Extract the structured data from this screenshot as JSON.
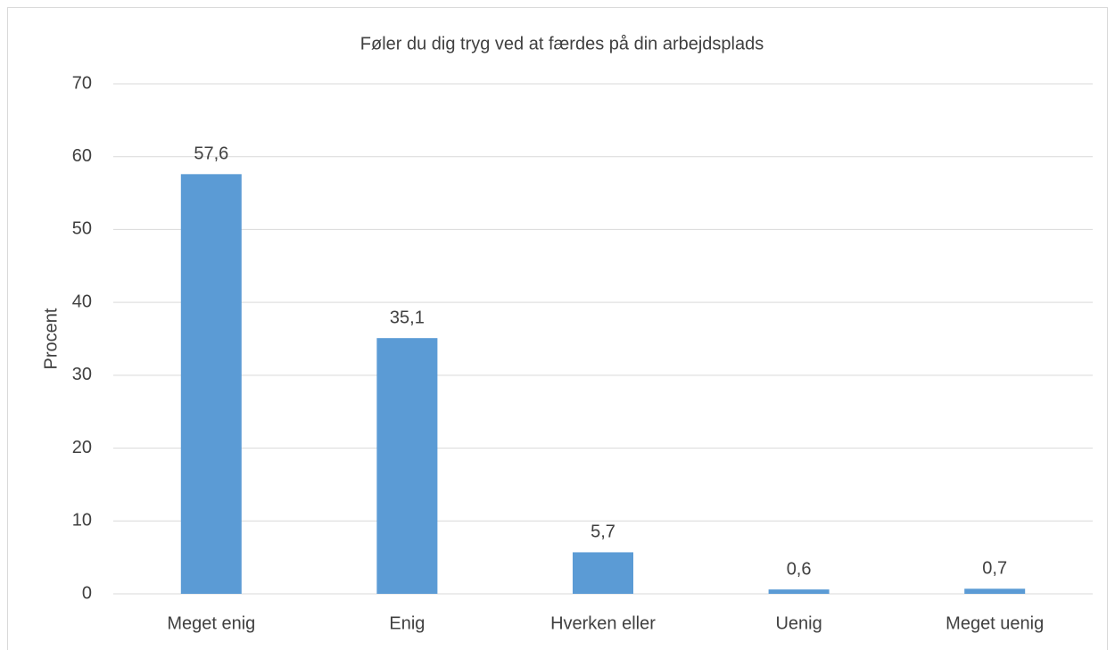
{
  "chart_data": {
    "type": "bar",
    "title": "Føler du dig tryg ved at færdes på din arbejdsplads",
    "y_label": "Procent",
    "categories": [
      "Meget enig",
      "Enig",
      "Hverken eller",
      "Uenig",
      "Meget uenig"
    ],
    "values": [
      57.6,
      35.1,
      5.7,
      0.6,
      0.7
    ],
    "value_labels": [
      "57,6",
      "35,1",
      "5,7",
      "0,6",
      "0,7"
    ],
    "color": "#5b9bd5",
    "ylim": [
      0,
      70
    ],
    "yticks": [
      0,
      10,
      20,
      30,
      40,
      50,
      60,
      70
    ],
    "grid": true
  }
}
